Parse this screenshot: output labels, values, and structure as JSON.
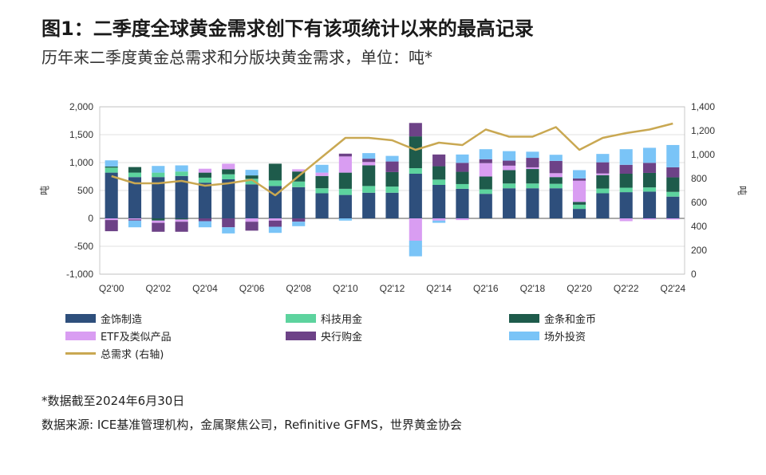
{
  "header": {
    "title": "图1：二季度全球黄金需求创下有该项统计以来的最高记录",
    "subtitle": "历年来二季度黄金总需求和分版块黄金需求，单位：吨*"
  },
  "footnote": {
    "note": "*数据截至2024年6月30日",
    "source": "数据来源: ICE基准管理机构，金属聚焦公司，Refinitive GFMS，世界黄金协会"
  },
  "chart_data": {
    "type": "bar",
    "stacked": true,
    "categories": [
      "Q2'00",
      "Q2'01",
      "Q2'02",
      "Q2'03",
      "Q2'04",
      "Q2'05",
      "Q2'06",
      "Q2'07",
      "Q2'08",
      "Q2'09",
      "Q2'10",
      "Q2'11",
      "Q2'12",
      "Q2'13",
      "Q2'14",
      "Q2'15",
      "Q2'16",
      "Q2'17",
      "Q2'18",
      "Q2'19",
      "Q2'20",
      "Q2'21",
      "Q2'22",
      "Q2'23",
      "Q2'24"
    ],
    "x_tick_labels": [
      "Q2'00",
      "Q2'02",
      "Q2'04",
      "Q2'06",
      "Q2'08",
      "Q2'10",
      "Q2'12",
      "Q2'14",
      "Q2'16",
      "Q2'18",
      "Q2'20",
      "Q2'22",
      "Q2'24"
    ],
    "ylabel": "吨",
    "y2label": "吨",
    "ylim": [
      -1000,
      2000
    ],
    "yticks": [
      "2,000",
      "1,500",
      "1,000",
      "500",
      "0",
      "-500",
      "-1,000"
    ],
    "y2lim": [
      0,
      1400
    ],
    "y2ticks": [
      "1,400",
      "1,200",
      "1,000",
      "800",
      "600",
      "400",
      "200",
      "0"
    ],
    "grid": true,
    "legend_position": "bottom",
    "series": [
      {
        "name": "金饰制造",
        "color": "#2e4f7c",
        "values": [
          820,
          740,
          740,
          760,
          640,
          700,
          610,
          580,
          560,
          450,
          420,
          460,
          460,
          800,
          600,
          530,
          440,
          540,
          540,
          540,
          170,
          450,
          470,
          480,
          390
        ]
      },
      {
        "name": "科技用金",
        "color": "#5dd39e",
        "values": [
          90,
          80,
          80,
          80,
          90,
          90,
          100,
          100,
          100,
          90,
          110,
          120,
          110,
          100,
          95,
          85,
          80,
          85,
          85,
          80,
          75,
          85,
          80,
          75,
          85
        ]
      },
      {
        "name": "金条和金币",
        "color": "#1e5b4b",
        "values": [
          20,
          100,
          -40,
          -20,
          90,
          90,
          60,
          300,
          180,
          220,
          290,
          370,
          260,
          570,
          240,
          220,
          230,
          240,
          260,
          120,
          50,
          240,
          250,
          260,
          260
        ]
      },
      {
        "name": "ETF及类似产品",
        "color": "#d99df2",
        "values": [
          -30,
          -20,
          -40,
          -40,
          70,
          100,
          -60,
          -40,
          40,
          60,
          290,
          60,
          0,
          -400,
          -40,
          -30,
          240,
          80,
          30,
          70,
          380,
          30,
          -50,
          -20,
          -20
        ]
      },
      {
        "name": "央行购金",
        "color": "#6d4287",
        "values": [
          -200,
          -20,
          -160,
          -180,
          -50,
          -160,
          -160,
          -110,
          -60,
          0,
          50,
          60,
          190,
          240,
          210,
          160,
          70,
          90,
          170,
          220,
          40,
          200,
          160,
          180,
          180
        ]
      },
      {
        "name": "场外投资",
        "color": "#7ac4f7",
        "values": [
          110,
          -120,
          120,
          110,
          -110,
          -110,
          100,
          -110,
          -80,
          140,
          -40,
          100,
          100,
          -280,
          -40,
          150,
          180,
          170,
          110,
          110,
          150,
          150,
          280,
          270,
          400
        ]
      }
    ],
    "line_series": {
      "name": "总需求 (右轴)",
      "color": "#c9a852",
      "axis": "right",
      "values": [
        820,
        760,
        760,
        780,
        740,
        760,
        790,
        660,
        820,
        980,
        1140,
        1140,
        1120,
        1040,
        1100,
        1080,
        1210,
        1150,
        1150,
        1230,
        1040,
        1140,
        1180,
        1210,
        1260
      ]
    }
  }
}
